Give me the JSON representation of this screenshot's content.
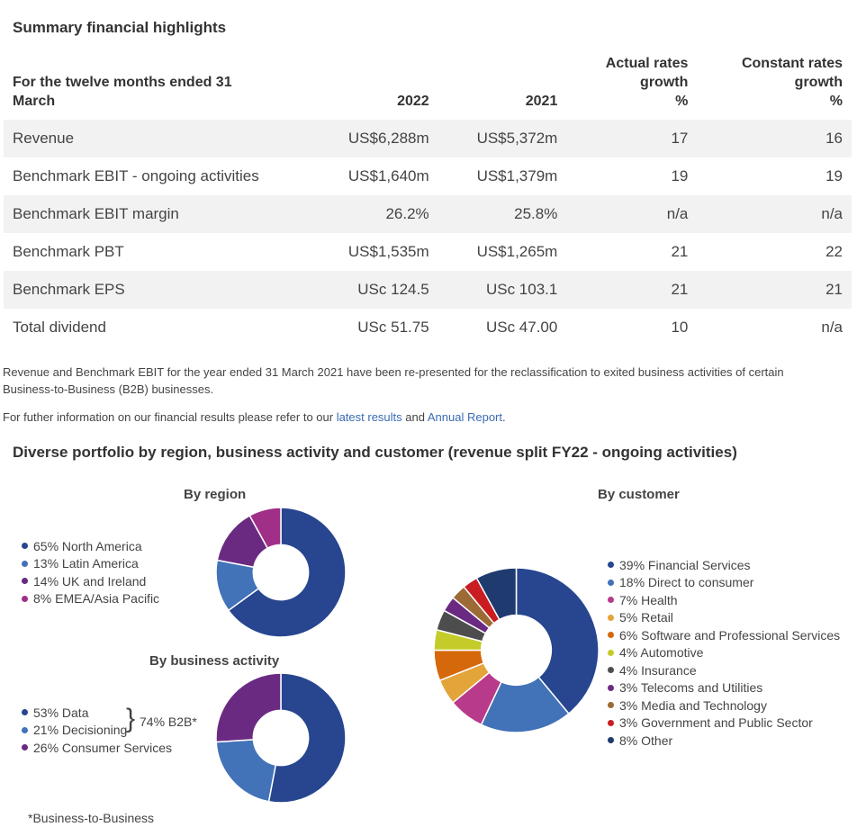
{
  "title": "Summary financial highlights",
  "table": {
    "headers": [
      "For the twelve months ended 31 March",
      "2022",
      "2021",
      "Actual rates growth %",
      "Constant rates growth %"
    ],
    "header_lines": [
      [
        "For the twelve months ended 31",
        "March"
      ],
      [
        "2022"
      ],
      [
        "2021"
      ],
      [
        "Actual rates",
        "growth",
        "%"
      ],
      [
        "Constant rates",
        "growth",
        "%"
      ]
    ],
    "rows": [
      [
        "Revenue",
        "US$6,288m",
        "US$5,372m",
        "17",
        "16"
      ],
      [
        "Benchmark EBIT - ongoing activities",
        "US$1,640m",
        "US$1,379m",
        "19",
        "19"
      ],
      [
        "Benchmark EBIT margin",
        "26.2%",
        "25.8%",
        "n/a",
        "n/a"
      ],
      [
        "Benchmark PBT",
        "US$1,535m",
        "US$1,265m",
        "21",
        "22"
      ],
      [
        "Benchmark EPS",
        "USc 124.5",
        "USc 103.1",
        "21",
        "21"
      ],
      [
        "Total dividend",
        "USc 51.75",
        "USc 47.00",
        "10",
        "n/a"
      ]
    ]
  },
  "notes": {
    "represent": "Revenue and Benchmark EBIT for the year ended 31 March 2021 have been re-presented for the reclassification to exited business activities of certain Business-to-Business (B2B) businesses.",
    "further_pre": "For futher information on our financial results please refer to our ",
    "link1": "latest results",
    "mid": " and ",
    "link2": "Annual Report",
    "end": "."
  },
  "portfolio_title": "Diverse portfolio by region, business activity and customer (revenue split FY22 - ongoing activities)",
  "brace": "}",
  "b2b_label": "74% B2B*",
  "footnote": "*Business-to-Business",
  "chart_data": [
    {
      "type": "pie",
      "title": "By region",
      "labels": [
        "65% North America",
        "13% Latin America",
        "14% UK and Ireland",
        "8% EMEA/Asia Pacific"
      ],
      "values": [
        65,
        13,
        14,
        8
      ],
      "colors": [
        "#27468f",
        "#4272b8",
        "#6b2a82",
        "#a02f87"
      ]
    },
    {
      "type": "pie",
      "title": "By business activity",
      "labels": [
        "53% Data",
        "21% Decisioning",
        "26% Consumer Services"
      ],
      "values": [
        53,
        21,
        26
      ],
      "colors": [
        "#27468f",
        "#4272b8",
        "#6b2a82"
      ]
    },
    {
      "type": "pie",
      "title": "By customer",
      "labels": [
        "39% Financial Services",
        "18% Direct to consumer",
        "7% Health",
        "5% Retail",
        "6% Software and Professional Services",
        "4% Automotive",
        "4% Insurance",
        "3% Telecoms and Utilities",
        "3% Media and Technology",
        "3% Government and Public Sector",
        "8% Other"
      ],
      "values": [
        39,
        18,
        7,
        5,
        6,
        4,
        4,
        3,
        3,
        3,
        8
      ],
      "colors": [
        "#27468f",
        "#4272b8",
        "#b83a8a",
        "#e3a43a",
        "#d6680c",
        "#c5cc2a",
        "#4d4d4d",
        "#6b2a82",
        "#9c6a34",
        "#c91d22",
        "#1f3a6e"
      ]
    }
  ]
}
